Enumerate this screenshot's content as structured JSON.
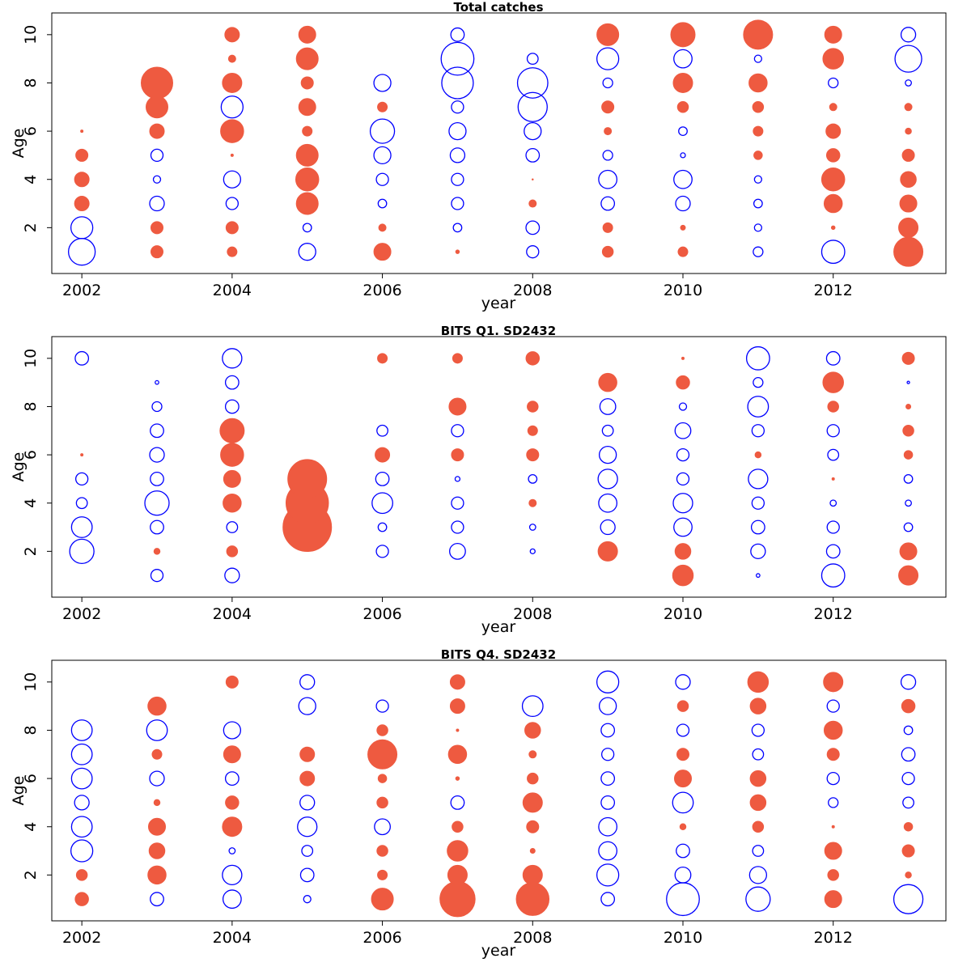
{
  "styles": {
    "positive_color": "#EE5A40",
    "negative_color": "#0000FF"
  },
  "chart_data": [
    {
      "type": "scatter",
      "subtype": "bubble",
      "title": "Total catches",
      "xlabel": "year",
      "ylabel": "Age",
      "xlim": [
        2001.6,
        2013.5
      ],
      "ylim": [
        0.1,
        10.9
      ],
      "xticks": [
        2002,
        2004,
        2006,
        2008,
        2010,
        2012
      ],
      "yticks": [
        2,
        4,
        6,
        8,
        10
      ],
      "grid": false,
      "legend": "none",
      "years": [
        2002,
        2003,
        2004,
        2005,
        2006,
        2007,
        2008,
        2009,
        2010,
        2011,
        2012,
        2013
      ],
      "ages": [
        1,
        2,
        3,
        4,
        5,
        6,
        7,
        8,
        9,
        10
      ],
      "values_by_year": [
        [
          -1.1,
          -0.9,
          0.6,
          0.6,
          0.5,
          0.1,
          0,
          0,
          0,
          0
        ],
        [
          0.5,
          0.5,
          -0.6,
          -0.3,
          -0.5,
          0.6,
          0.9,
          1.3,
          0,
          0
        ],
        [
          0.4,
          0.5,
          -0.5,
          -0.7,
          0.1,
          0.95,
          -0.9,
          0.8,
          0.3,
          0.6
        ],
        [
          -0.7,
          -0.35,
          0.9,
          0.95,
          0.9,
          0.4,
          0.7,
          0.5,
          0.9,
          0.7
        ],
        [
          0.7,
          0.3,
          -0.35,
          -0.5,
          -0.7,
          -1.0,
          0.4,
          -0.7,
          0,
          0
        ],
        [
          0.15,
          -0.35,
          -0.5,
          -0.5,
          -0.6,
          -0.7,
          -0.5,
          -1.3,
          -1.35,
          -0.55
        ],
        [
          -0.5,
          -0.55,
          0.3,
          0.05,
          -0.55,
          -0.7,
          -1.2,
          -1.25,
          -0.45,
          0
        ],
        [
          0.45,
          0.4,
          -0.55,
          -0.75,
          -0.4,
          0.3,
          0.5,
          -0.4,
          -0.9,
          0.9
        ],
        [
          0.4,
          0.2,
          -0.6,
          -0.75,
          -0.2,
          -0.35,
          0.45,
          0.8,
          -0.75,
          1.0
        ],
        [
          -0.4,
          -0.3,
          -0.35,
          -0.3,
          0.35,
          0.4,
          0.45,
          0.75,
          -0.3,
          1.2
        ],
        [
          -0.95,
          0.15,
          0.75,
          0.95,
          0.55,
          0.6,
          0.3,
          -0.4,
          0.85,
          0.7
        ],
        [
          1.2,
          0.8,
          0.7,
          0.65,
          0.5,
          0.25,
          0.3,
          -0.25,
          -1.1,
          -0.6
        ]
      ]
    },
    {
      "type": "scatter",
      "subtype": "bubble",
      "title": "BITS Q1. SD2432",
      "xlabel": "year",
      "ylabel": "Age",
      "xlim": [
        2001.6,
        2013.5
      ],
      "ylim": [
        0.1,
        10.9
      ],
      "xticks": [
        2002,
        2004,
        2006,
        2008,
        2010,
        2012
      ],
      "yticks": [
        2,
        4,
        6,
        8,
        10
      ],
      "grid": false,
      "legend": "none",
      "years": [
        2002,
        2003,
        2004,
        2005,
        2006,
        2007,
        2008,
        2009,
        2010,
        2011,
        2012,
        2013
      ],
      "ages": [
        1,
        2,
        3,
        4,
        5,
        6,
        7,
        8,
        9,
        10
      ],
      "values_by_year": [
        [
          0,
          -1.0,
          -0.85,
          -0.45,
          -0.5,
          0.1,
          0,
          0,
          0,
          -0.55
        ],
        [
          -0.5,
          0.25,
          -0.55,
          -1.0,
          -0.55,
          -0.6,
          -0.55,
          -0.4,
          -0.15,
          0
        ],
        [
          -0.6,
          0.45,
          -0.45,
          0.75,
          0.7,
          0.95,
          1.0,
          -0.55,
          -0.55,
          -0.8
        ],
        [
          0,
          0,
          2.0,
          1.75,
          1.6,
          0,
          0,
          0,
          0,
          0
        ],
        [
          0,
          -0.5,
          -0.35,
          -0.85,
          -0.55,
          0.6,
          -0.45,
          0,
          0,
          0.4
        ],
        [
          0,
          -0.65,
          -0.5,
          -0.5,
          -0.2,
          0.5,
          -0.5,
          0.7,
          0,
          0.4
        ],
        [
          0,
          -0.2,
          -0.25,
          0.3,
          -0.35,
          0.5,
          0.4,
          0.45,
          0,
          0.55
        ],
        [
          0,
          0.8,
          -0.6,
          -0.75,
          -0.8,
          -0.7,
          -0.45,
          -0.65,
          0.75,
          0
        ],
        [
          0.85,
          0.65,
          -0.75,
          -0.8,
          -0.5,
          -0.5,
          -0.65,
          -0.3,
          0.55,
          0.1
        ],
        [
          -0.15,
          -0.6,
          -0.55,
          -0.5,
          -0.8,
          0.25,
          -0.5,
          -0.85,
          -0.4,
          -0.95
        ],
        [
          -0.95,
          -0.55,
          -0.5,
          -0.25,
          0.1,
          -0.45,
          -0.5,
          0.45,
          0.85,
          -0.55
        ],
        [
          0.8,
          0.7,
          -0.35,
          -0.25,
          -0.35,
          0.35,
          0.45,
          0.2,
          -0.1,
          0.5
        ]
      ]
    },
    {
      "type": "scatter",
      "subtype": "bubble",
      "title": "BITS Q4. SD2432",
      "xlabel": "year",
      "ylabel": "Age",
      "xlim": [
        2001.6,
        2013.5
      ],
      "ylim": [
        0.1,
        10.9
      ],
      "xticks": [
        2002,
        2004,
        2006,
        2008,
        2010,
        2012
      ],
      "yticks": [
        2,
        4,
        6,
        8,
        10
      ],
      "grid": false,
      "legend": "none",
      "years": [
        2002,
        2003,
        2004,
        2005,
        2006,
        2007,
        2008,
        2009,
        2010,
        2011,
        2012,
        2013
      ],
      "ages": [
        1,
        2,
        3,
        4,
        5,
        6,
        7,
        8,
        9,
        10
      ],
      "values_by_year": [
        [
          0.55,
          0.45,
          -0.9,
          -0.85,
          -0.6,
          -0.85,
          -0.85,
          -0.85,
          0,
          0
        ],
        [
          -0.55,
          0.75,
          0.65,
          0.7,
          0.25,
          -0.6,
          0.4,
          -0.85,
          0.75,
          0
        ],
        [
          -0.75,
          -0.8,
          -0.25,
          0.8,
          0.55,
          -0.55,
          0.7,
          -0.7,
          0,
          0.5
        ],
        [
          -0.3,
          -0.55,
          -0.45,
          -0.8,
          -0.6,
          0.6,
          0.6,
          0,
          -0.7,
          -0.6
        ],
        [
          0.9,
          0.4,
          0.45,
          -0.65,
          0.45,
          0.35,
          1.2,
          0.45,
          -0.5,
          0
        ],
        [
          1.45,
          0.8,
          0.85,
          0.45,
          -0.55,
          0.15,
          0.75,
          0.1,
          0.6,
          0.6
        ],
        [
          1.35,
          0.8,
          0.2,
          0.5,
          0.8,
          0.45,
          0.3,
          0.65,
          -0.85,
          0
        ],
        [
          -0.55,
          -0.9,
          -0.75,
          -0.75,
          -0.55,
          -0.55,
          -0.5,
          -0.55,
          -0.7,
          -0.9
        ],
        [
          -1.35,
          -0.65,
          -0.55,
          0.25,
          -0.85,
          0.7,
          0.5,
          -0.5,
          0.45,
          -0.6
        ],
        [
          -1.0,
          -0.7,
          -0.45,
          0.45,
          0.65,
          0.65,
          -0.45,
          -0.5,
          0.65,
          0.85
        ],
        [
          0.7,
          0.45,
          0.7,
          0.1,
          -0.4,
          -0.5,
          0.5,
          0.75,
          -0.5,
          0.8
        ],
        [
          -1.2,
          0.25,
          0.5,
          0.35,
          -0.45,
          -0.5,
          -0.55,
          -0.35,
          0.55,
          -0.6
        ]
      ]
    }
  ]
}
